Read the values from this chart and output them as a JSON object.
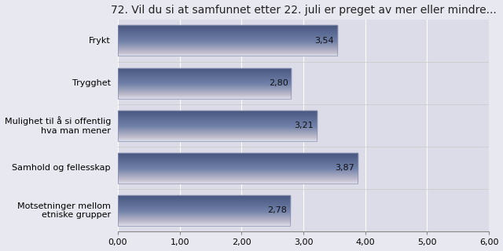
{
  "title": "72. Vil du si at samfunnet etter 22. juli er preget av mer eller mindre...",
  "categories": [
    "Motsetninger mellom\netniske grupper",
    "Samhold og fellesskap",
    "Mulighet til å si offentlig\nhva man mener",
    "Trygghet",
    "Frykt"
  ],
  "values": [
    2.78,
    3.87,
    3.21,
    2.8,
    3.54
  ],
  "bar_color_top": "#c8ccdc",
  "bar_color_mid": "#7080a8",
  "bar_color_bot": "#4a5880",
  "background_color": "#e8e8f0",
  "plot_bg_color": "#dcdce8",
  "grid_color": "#ffffff",
  "xlim": [
    0,
    6.0
  ],
  "xticks": [
    0.0,
    1.0,
    2.0,
    3.0,
    4.0,
    5.0,
    6.0
  ],
  "xtick_labels": [
    "0,00",
    "1,00",
    "2,00",
    "3,00",
    "4,00",
    "5,00",
    "6,00"
  ],
  "title_fontsize": 10,
  "label_fontsize": 8,
  "value_fontsize": 8,
  "tick_fontsize": 8,
  "bar_height": 0.72,
  "bar_gap": 0.28
}
